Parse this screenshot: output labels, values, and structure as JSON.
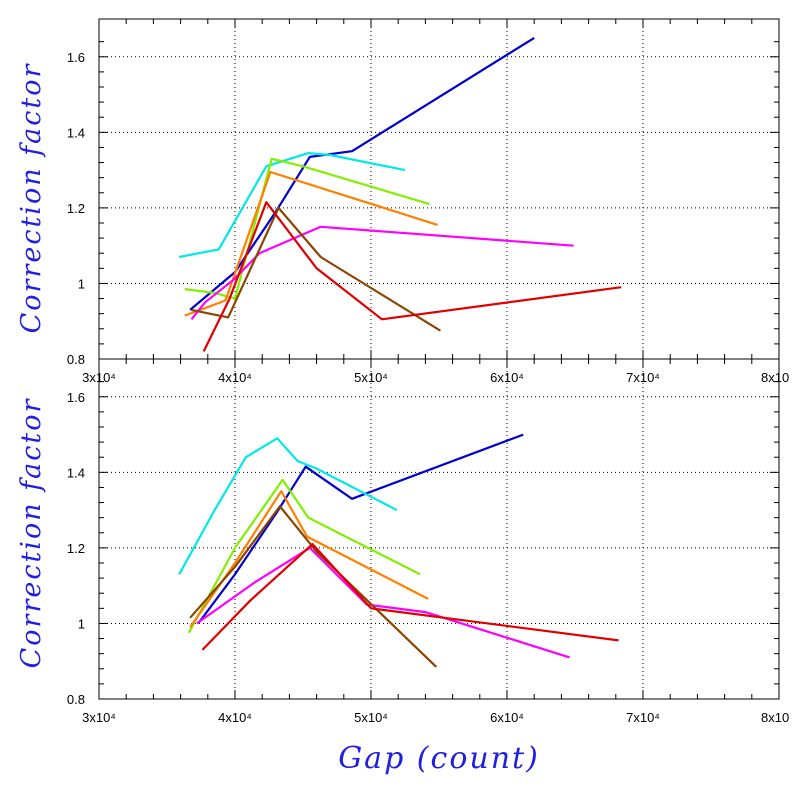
{
  "figure": {
    "xlabel": "Gap (count)",
    "ylabel_top": "Correction factor",
    "ylabel_bottom": "Correction factor"
  },
  "chart_data": [
    {
      "type": "line",
      "panel": "top",
      "xlim": [
        30000,
        80000
      ],
      "ylim": [
        0.8,
        1.7
      ],
      "grid": true,
      "x_tick_labels": [
        "3x10⁴",
        "4x10⁴",
        "5x10⁴",
        "6x10⁴",
        "7x10⁴",
        "8x10"
      ],
      "y_tick_labels": [
        "0.8",
        "1",
        "1.2",
        "1.4",
        "1.6"
      ],
      "series": [
        {
          "color": "#0000d0",
          "points": [
            [
              36700,
              0.93
            ],
            [
              40000,
              1.03
            ],
            [
              43000,
              1.19
            ],
            [
              45500,
              1.335
            ],
            [
              48600,
              1.35
            ],
            [
              62000,
              1.65
            ]
          ]
        },
        {
          "color": "#00e8e8",
          "points": [
            [
              35900,
              1.07
            ],
            [
              38800,
              1.09
            ],
            [
              42300,
              1.31
            ],
            [
              45400,
              1.345
            ],
            [
              47000,
              1.34
            ],
            [
              52500,
              1.3
            ]
          ]
        },
        {
          "color": "#80f000",
          "points": [
            [
              36300,
              0.985
            ],
            [
              38500,
              0.975
            ],
            [
              40000,
              0.96
            ],
            [
              42700,
              1.33
            ],
            [
              45000,
              1.31
            ],
            [
              54300,
              1.21
            ]
          ]
        },
        {
          "color": "#ff8000",
          "points": [
            [
              36300,
              0.915
            ],
            [
              38200,
              0.94
            ],
            [
              39300,
              0.955
            ],
            [
              42600,
              1.295
            ],
            [
              54900,
              1.155
            ]
          ]
        },
        {
          "color": "#ff00ff",
          "points": [
            [
              36800,
              0.905
            ],
            [
              37800,
              0.95
            ],
            [
              39900,
              1.01
            ],
            [
              41800,
              1.08
            ],
            [
              46300,
              1.15
            ],
            [
              64900,
              1.1
            ]
          ]
        },
        {
          "color": "#8b4500",
          "points": [
            [
              36800,
              0.93
            ],
            [
              39500,
              0.91
            ],
            [
              43200,
              1.2
            ],
            [
              46300,
              1.07
            ],
            [
              55100,
              0.875
            ]
          ]
        },
        {
          "color": "#e00000",
          "points": [
            [
              37700,
              0.82
            ],
            [
              39600,
              0.96
            ],
            [
              42300,
              1.215
            ],
            [
              46000,
              1.04
            ],
            [
              50800,
              0.905
            ],
            [
              68400,
              0.99
            ]
          ]
        }
      ]
    },
    {
      "type": "line",
      "panel": "bottom",
      "xlim": [
        30000,
        80000
      ],
      "ylim": [
        0.8,
        1.7
      ],
      "grid": true,
      "x_tick_labels": [
        "3x10⁴",
        "4x10⁴",
        "5x10⁴",
        "6x10⁴",
        "7x10⁴",
        "8x10"
      ],
      "y_tick_labels": [
        "0.8",
        "1",
        "1.2",
        "1.4",
        "1.6"
      ],
      "series": [
        {
          "color": "#0000d0",
          "points": [
            [
              37300,
              1.0
            ],
            [
              40000,
              1.13
            ],
            [
              43000,
              1.29
            ],
            [
              45200,
              1.415
            ],
            [
              48600,
              1.33
            ],
            [
              61200,
              1.5
            ]
          ]
        },
        {
          "color": "#00e8e8",
          "points": [
            [
              35900,
              1.13
            ],
            [
              38500,
              1.3
            ],
            [
              40800,
              1.44
            ],
            [
              43100,
              1.49
            ],
            [
              44600,
              1.43
            ],
            [
              46000,
              1.41
            ],
            [
              51900,
              1.3
            ]
          ]
        },
        {
          "color": "#80f000",
          "points": [
            [
              36600,
              0.975
            ],
            [
              40000,
              1.2
            ],
            [
              43500,
              1.38
            ],
            [
              45400,
              1.28
            ],
            [
              53600,
              1.13
            ]
          ]
        },
        {
          "color": "#ff8000",
          "points": [
            [
              36700,
              0.99
            ],
            [
              40000,
              1.16
            ],
            [
              43400,
              1.35
            ],
            [
              45300,
              1.23
            ],
            [
              54200,
              1.065
            ]
          ]
        },
        {
          "color": "#ff00ff",
          "points": [
            [
              37200,
              1.0
            ],
            [
              41500,
              1.11
            ],
            [
              45500,
              1.2
            ],
            [
              49700,
              1.05
            ],
            [
              54000,
              1.03
            ],
            [
              64600,
              0.91
            ]
          ]
        },
        {
          "color": "#8b4500",
          "points": [
            [
              36700,
              1.015
            ],
            [
              40000,
              1.15
            ],
            [
              43300,
              1.31
            ],
            [
              46000,
              1.19
            ],
            [
              54800,
              0.885
            ]
          ]
        },
        {
          "color": "#e00000",
          "points": [
            [
              37600,
              0.93
            ],
            [
              41100,
              1.06
            ],
            [
              45700,
              1.21
            ],
            [
              50000,
              1.04
            ],
            [
              68200,
              0.955
            ]
          ]
        }
      ]
    }
  ]
}
